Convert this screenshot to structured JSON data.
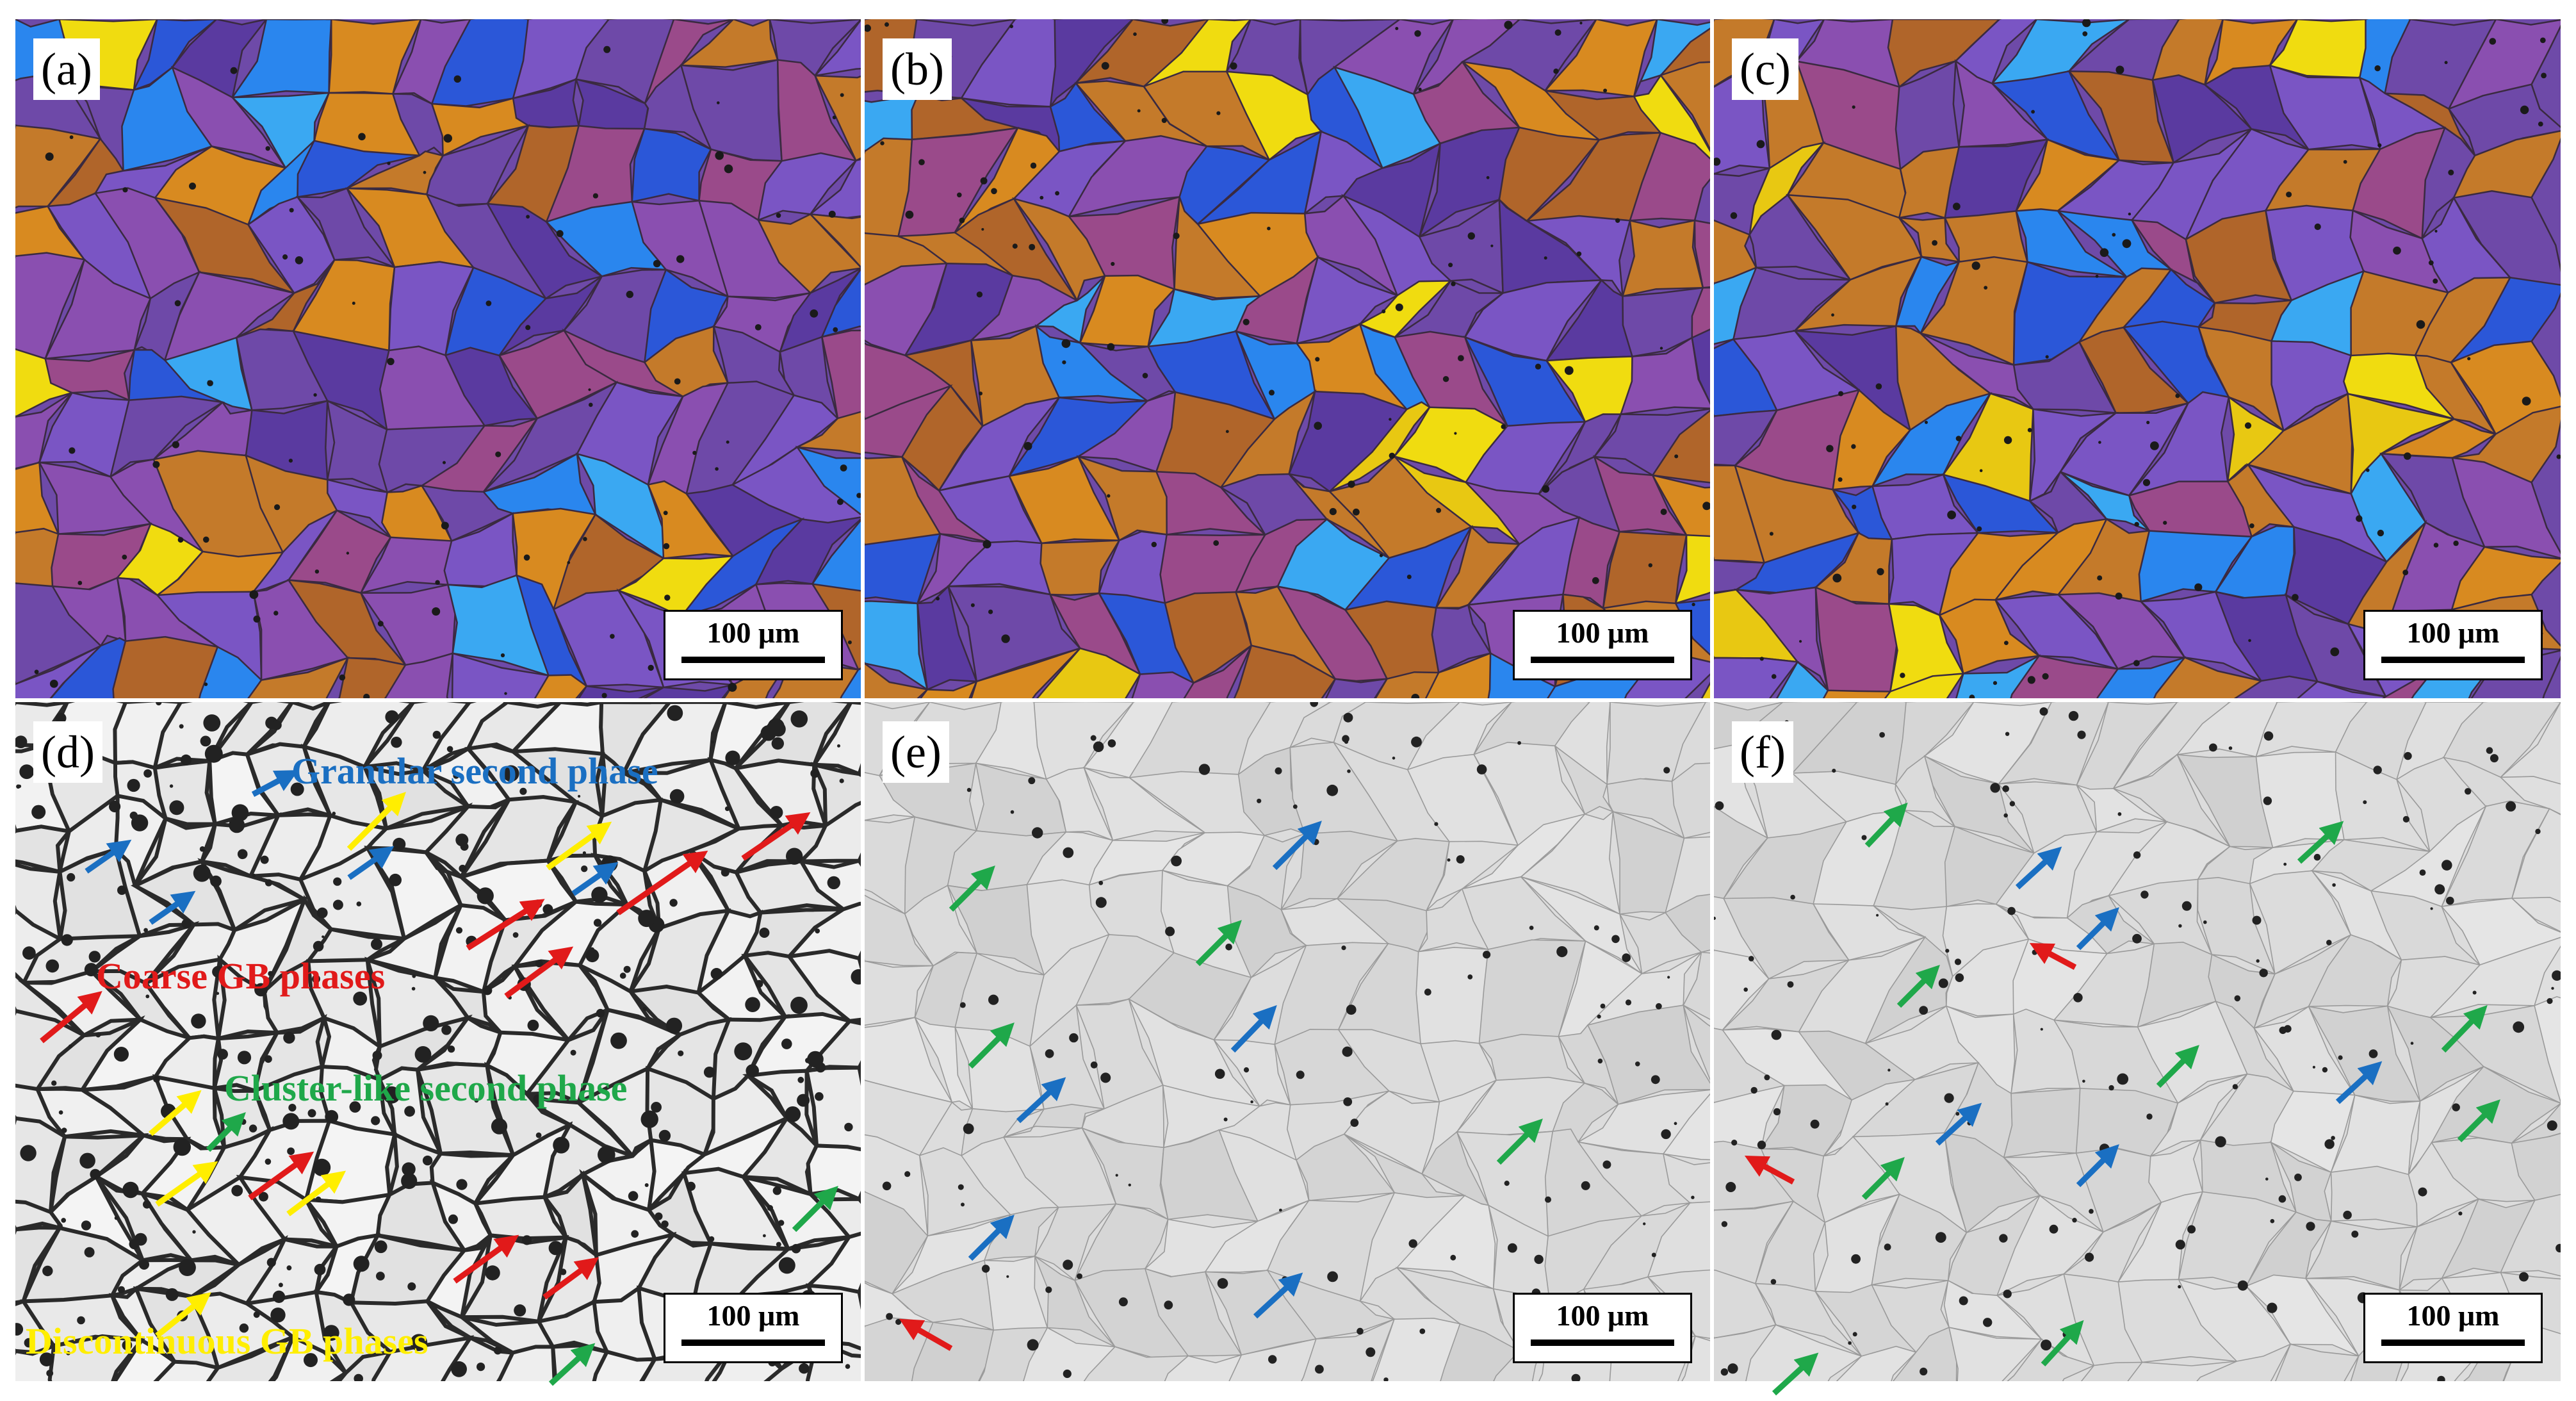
{
  "panels": {
    "a": {
      "label": "(a)",
      "scale": "100 μm"
    },
    "b": {
      "label": "(b)",
      "scale": "100 μm"
    },
    "c": {
      "label": "(c)",
      "scale": "100 μm"
    },
    "d": {
      "label": "(d)",
      "scale": "100 μm"
    },
    "e": {
      "label": "(e)",
      "scale": "100 μm"
    },
    "f": {
      "label": "(f)",
      "scale": "100 μm"
    }
  },
  "annotations": {
    "granular": "Granular second phase",
    "coarse": "Coarse GB phases",
    "cluster": "Cluster-like second phase",
    "discontinuous": "Discontinuous GB phases"
  },
  "colors": {
    "blue_arrow": "#1a6fc2",
    "yellow_arrow": "#ffee00",
    "red_arrow": "#e11a1a",
    "green_arrow": "#1fa84a",
    "granular_text": "#1a6fc2",
    "coarse_text": "#e11a1a",
    "cluster_text": "#1fa84a",
    "discontinuous_text": "#ffee00"
  }
}
